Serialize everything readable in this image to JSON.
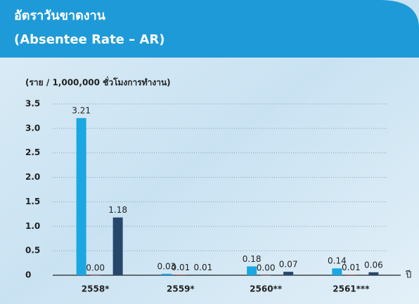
{
  "chart_data": {
    "type": "bar",
    "title": [
      "อัตราวันขาดงาน",
      "(Absentee Rate – AR)"
    ],
    "subtitle": "(ราย / 1,000,000 ชั่วโมงการทำงาน)",
    "x_label": "ปี",
    "categories": [
      "2558*",
      "2559*",
      "2560**",
      "2561***"
    ],
    "series": [
      {
        "color": "#1aa7e2",
        "values": [
          3.21,
          0.03,
          0.18,
          0.14
        ],
        "value_labels": [
          "3.21",
          "0.03",
          "0.18",
          "0.14"
        ]
      },
      {
        "color": "#b8473a",
        "values": [
          0,
          0.01,
          0,
          0.01
        ],
        "value_labels": [
          "0.00",
          "0.01",
          "0.00",
          "0.01"
        ]
      },
      {
        "color": "#27476a",
        "values": [
          1.18,
          0.01,
          0.07,
          0.06
        ],
        "value_labels": [
          "1.18",
          "0.01",
          "0.07",
          "0.06"
        ]
      }
    ],
    "ylim": [
      0,
      3.5
    ],
    "yticks": [
      0,
      0.5,
      {
        "value": 1,
        "label": "1.0"
      },
      1.5,
      {
        "value": 2,
        "label": "2.0"
      },
      2.5,
      {
        "value": 3,
        "label": "3.0"
      },
      3.5
    ],
    "grid": true
  }
}
